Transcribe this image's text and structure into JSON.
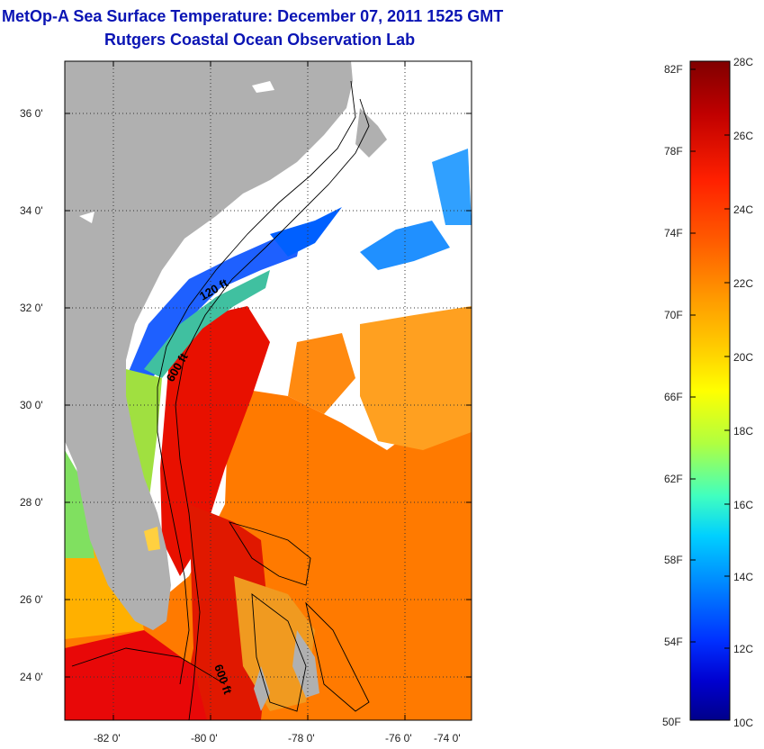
{
  "header": {
    "title": "MetOp-A Sea Surface Temperature:  December 07, 2011 1525 GMT",
    "subtitle": "Rutgers Coastal Ocean Observation Lab"
  },
  "map": {
    "lat_range": [
      23,
      37
    ],
    "lon_range": [
      -83,
      -73
    ],
    "lat_ticks": [
      "24 0'",
      "26 0'",
      "28 0'",
      "30 0'",
      "32 0'",
      "34 0'",
      "36 0'"
    ],
    "lon_ticks": [
      "-82 0'",
      "-80 0'",
      "-78 0'",
      "-76 0'",
      "-74 0'"
    ],
    "contour_labels": [
      "120 ft",
      "600 ft",
      "600 ft"
    ],
    "colors": {
      "land": "#b0b0b0",
      "cloud": "#ffffff",
      "grid": "#333333"
    }
  },
  "colorbar": {
    "celsius_labels": [
      "28C",
      "26C",
      "24C",
      "22C",
      "20C",
      "18C",
      "16C",
      "14C",
      "12C",
      "10C"
    ],
    "fahrenheit_labels": [
      "82F",
      "78F",
      "74F",
      "70F",
      "66F",
      "62F",
      "58F",
      "54F",
      "50F"
    ],
    "stops": [
      "#800000",
      "#c00000",
      "#ff2000",
      "#ff6000",
      "#ff9a00",
      "#ffd000",
      "#ffff00",
      "#b0ff40",
      "#40ffc0",
      "#00d0ff",
      "#0080ff",
      "#0030ff",
      "#0000d0",
      "#00008a"
    ]
  }
}
